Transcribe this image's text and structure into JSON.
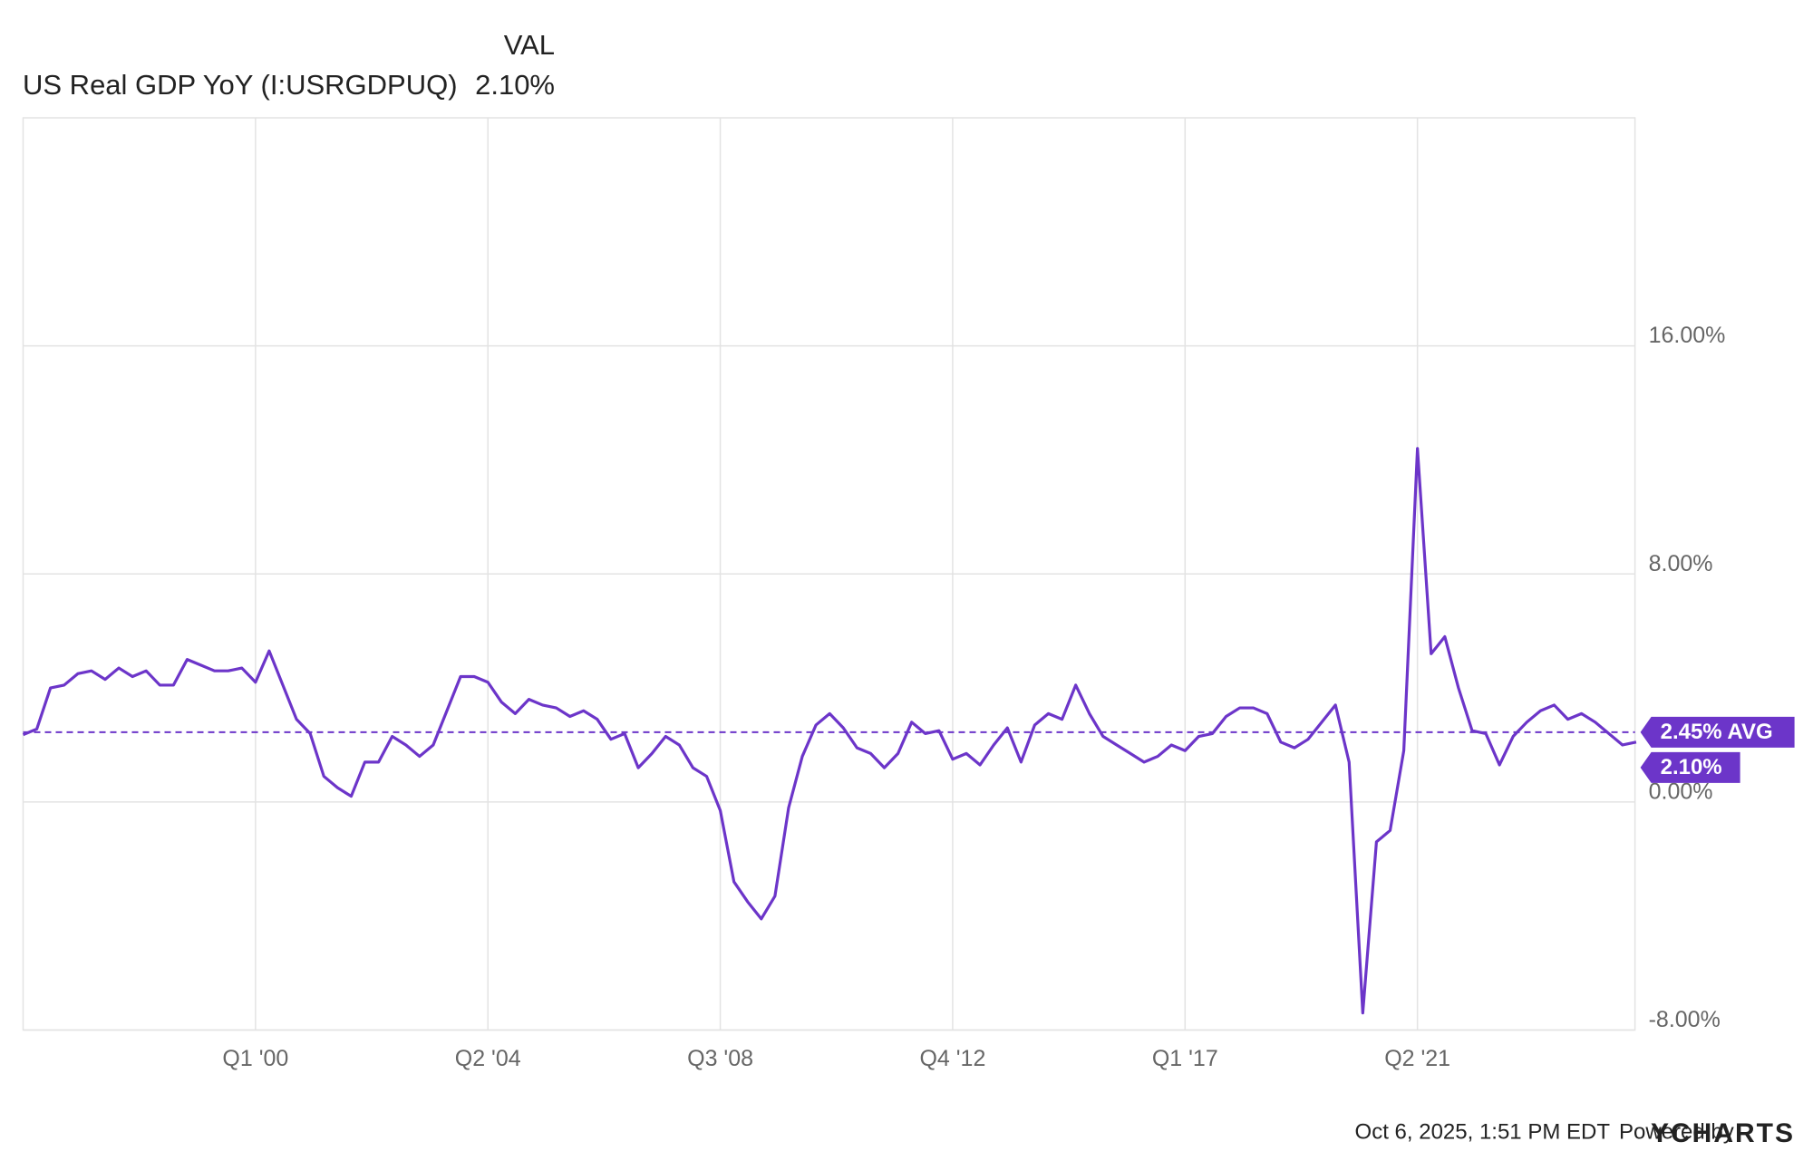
{
  "chart_data": {
    "type": "line",
    "legend": {
      "header": "VAL"
    },
    "series": [
      {
        "name": "US Real GDP YoY (I:USRGDPUQ)",
        "color": "#6c35c9",
        "last_value_label": "2.10%",
        "values": [
          2.36,
          2.56,
          4.0,
          4.1,
          4.5,
          4.6,
          4.3,
          4.7,
          4.4,
          4.6,
          4.1,
          4.1,
          5.0,
          4.8,
          4.6,
          4.6,
          4.7,
          4.2,
          5.3,
          4.1,
          2.9,
          2.4,
          0.9,
          0.5,
          0.2,
          1.4,
          1.4,
          2.3,
          2.0,
          1.6,
          2.0,
          3.2,
          4.4,
          4.4,
          4.2,
          3.5,
          3.1,
          3.6,
          3.4,
          3.3,
          3.0,
          3.2,
          2.9,
          2.2,
          2.4,
          1.2,
          1.7,
          2.3,
          2.0,
          1.2,
          0.9,
          -0.3,
          -2.8,
          -3.5,
          -4.1,
          -3.3,
          -0.2,
          1.6,
          2.7,
          3.1,
          2.6,
          1.9,
          1.7,
          1.2,
          1.7,
          2.8,
          2.4,
          2.5,
          1.5,
          1.7,
          1.3,
          2.0,
          2.6,
          1.4,
          2.7,
          3.1,
          2.9,
          4.1,
          3.1,
          2.3,
          2.0,
          1.7,
          1.4,
          1.6,
          2.0,
          1.8,
          2.3,
          2.4,
          3.0,
          3.3,
          3.3,
          3.1,
          2.1,
          1.9,
          2.2,
          2.8,
          3.4,
          1.4,
          -7.4,
          -1.4,
          -1.0,
          1.8,
          12.4,
          5.2,
          5.8,
          4.0,
          2.5,
          2.4,
          1.3,
          2.3,
          2.8,
          3.2,
          3.4,
          2.9,
          3.1,
          2.8,
          2.4,
          2.0,
          2.1
        ]
      }
    ],
    "categories": [
      null,
      null,
      null,
      null,
      null,
      null,
      null,
      null,
      null,
      null,
      null,
      null,
      null,
      null,
      null,
      null,
      null,
      "Q1 '00",
      null,
      null,
      null,
      null,
      null,
      null,
      null,
      null,
      null,
      null,
      null,
      null,
      null,
      null,
      null,
      null,
      "Q2 '04",
      null,
      null,
      null,
      null,
      null,
      null,
      null,
      null,
      null,
      null,
      null,
      null,
      null,
      null,
      null,
      null,
      "Q3 '08",
      null,
      null,
      null,
      null,
      null,
      null,
      null,
      null,
      null,
      null,
      null,
      null,
      null,
      null,
      null,
      null,
      "Q4 '12",
      null,
      null,
      null,
      null,
      null,
      null,
      null,
      null,
      null,
      null,
      null,
      null,
      null,
      null,
      null,
      null,
      "Q1 '17",
      null,
      null,
      null,
      null,
      null,
      null,
      null,
      null,
      null,
      null,
      null,
      null,
      null,
      null,
      null,
      null,
      "Q2 '21",
      null,
      null,
      null,
      null,
      null,
      null,
      null,
      null,
      null,
      null,
      null,
      null,
      null,
      null,
      null,
      null
    ],
    "average": {
      "value": 2.45,
      "label": "2.45% AVG"
    },
    "ylim": [
      -8,
      24
    ],
    "yticks": [
      {
        "value": -8,
        "label": "-8.00%"
      },
      {
        "value": 0,
        "label": "0.00%"
      },
      {
        "value": 8,
        "label": "8.00%"
      },
      {
        "value": 16,
        "label": "16.00%"
      }
    ],
    "grid": true,
    "footer": {
      "timestamp": "Oct 6, 2025, 1:51 PM EDT",
      "powered_by": "Powered by",
      "brand": "YCHARTS"
    }
  }
}
